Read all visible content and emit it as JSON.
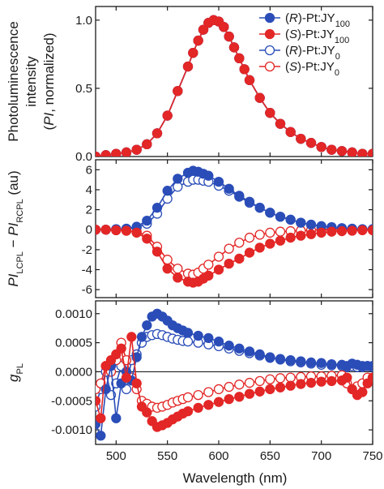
{
  "colors": {
    "r_series": "#2a4db8",
    "s_series": "#e32626",
    "axis": "#1a1a1a",
    "zero_line": "#000000"
  },
  "legend": [
    {
      "prefix": "(",
      "chiral": "R",
      "mid": ")-Pt:JY",
      "sub": "100",
      "marker": "filled",
      "color_key": "r_series"
    },
    {
      "prefix": "(",
      "chiral": "S",
      "mid": ")-Pt:JY",
      "sub": "100",
      "marker": "filled",
      "color_key": "s_series"
    },
    {
      "prefix": "(",
      "chiral": "R",
      "mid": ")-Pt:JY",
      "sub": "0",
      "marker": "open",
      "color_key": "r_series"
    },
    {
      "prefix": "(",
      "chiral": "S",
      "mid": ")-Pt:JY",
      "sub": "0",
      "marker": "open",
      "color_key": "s_series"
    }
  ],
  "chart_data": [
    {
      "type": "line",
      "panel": "top",
      "ylabel_lines": [
        "Photoluminescence",
        "intensity",
        "(PI, normalized)"
      ],
      "ylim": [
        0,
        1.1
      ],
      "yticks": [
        0.0,
        0.5,
        1.0
      ],
      "ytick_labels": [
        "0.0",
        "0.5",
        "1.0"
      ],
      "x": [
        480,
        490,
        500,
        510,
        520,
        530,
        540,
        550,
        560,
        570,
        575,
        580,
        585,
        590,
        595,
        600,
        605,
        610,
        615,
        620,
        625,
        630,
        640,
        650,
        660,
        670,
        680,
        690,
        700,
        710,
        720,
        730,
        740,
        750
      ],
      "series": [
        {
          "name": "(R)-Pt:JY100",
          "marker": "filled",
          "color_key": "r_series",
          "values": [
            0.0,
            0.01,
            0.02,
            0.03,
            0.05,
            0.09,
            0.17,
            0.3,
            0.48,
            0.66,
            0.76,
            0.85,
            0.93,
            0.98,
            1.0,
            0.99,
            0.95,
            0.88,
            0.8,
            0.72,
            0.64,
            0.56,
            0.43,
            0.32,
            0.24,
            0.18,
            0.13,
            0.1,
            0.07,
            0.05,
            0.04,
            0.03,
            0.02,
            0.02
          ]
        },
        {
          "name": "(S)-Pt:JY100",
          "marker": "filled",
          "color_key": "s_series",
          "values": [
            0.0,
            0.01,
            0.02,
            0.03,
            0.05,
            0.09,
            0.17,
            0.3,
            0.48,
            0.66,
            0.76,
            0.85,
            0.93,
            0.98,
            1.0,
            0.99,
            0.95,
            0.88,
            0.8,
            0.72,
            0.64,
            0.56,
            0.43,
            0.32,
            0.24,
            0.18,
            0.13,
            0.1,
            0.07,
            0.05,
            0.04,
            0.03,
            0.02,
            0.02
          ]
        },
        {
          "name": "(R)-Pt:JY0",
          "marker": "open",
          "color_key": "r_series",
          "values": [
            0.0,
            0.01,
            0.02,
            0.03,
            0.05,
            0.09,
            0.17,
            0.3,
            0.48,
            0.66,
            0.76,
            0.85,
            0.93,
            0.98,
            1.0,
            0.99,
            0.95,
            0.88,
            0.8,
            0.72,
            0.64,
            0.56,
            0.43,
            0.32,
            0.24,
            0.18,
            0.13,
            0.1,
            0.07,
            0.05,
            0.04,
            0.03,
            0.02,
            0.02
          ]
        },
        {
          "name": "(S)-Pt:JY0",
          "marker": "open",
          "color_key": "s_series",
          "values": [
            0.0,
            0.01,
            0.02,
            0.03,
            0.05,
            0.09,
            0.17,
            0.3,
            0.48,
            0.66,
            0.76,
            0.85,
            0.93,
            0.98,
            1.0,
            0.99,
            0.95,
            0.88,
            0.8,
            0.72,
            0.64,
            0.56,
            0.43,
            0.32,
            0.24,
            0.18,
            0.13,
            0.1,
            0.07,
            0.05,
            0.04,
            0.03,
            0.02,
            0.02
          ]
        }
      ]
    },
    {
      "type": "line",
      "panel": "middle",
      "ylabel": "PI_LCPL − PI_RCPL (au)",
      "ylim": [
        -6.8,
        7.0
      ],
      "yticks": [
        -6,
        -4,
        -2,
        0,
        2,
        4,
        6
      ],
      "ytick_labels": [
        "-6",
        "-4",
        "-2",
        "0",
        "2",
        "4",
        "6"
      ],
      "x": [
        480,
        490,
        500,
        510,
        520,
        530,
        540,
        550,
        560,
        570,
        575,
        580,
        585,
        590,
        600,
        610,
        620,
        630,
        640,
        650,
        660,
        670,
        680,
        690,
        700,
        710,
        720,
        730,
        740,
        750
      ],
      "series": [
        {
          "name": "(R)-Pt:JY100",
          "marker": "filled",
          "color_key": "r_series",
          "values": [
            0.0,
            0.0,
            0.05,
            0.1,
            0.3,
            0.9,
            2.2,
            3.9,
            5.1,
            5.7,
            5.9,
            5.8,
            5.6,
            5.4,
            4.8,
            4.1,
            3.4,
            2.8,
            2.2,
            1.7,
            1.3,
            1.0,
            0.7,
            0.5,
            0.35,
            0.25,
            0.15,
            0.1,
            0.05,
            0.05
          ]
        },
        {
          "name": "(S)-Pt:JY100",
          "marker": "filled",
          "color_key": "s_series",
          "values": [
            0.0,
            0.0,
            -0.05,
            -0.1,
            -0.3,
            -0.9,
            -2.2,
            -3.9,
            -4.8,
            -5.2,
            -5.3,
            -5.2,
            -4.9,
            -4.6,
            -4.0,
            -3.4,
            -2.9,
            -2.3,
            -1.8,
            -1.4,
            -1.1,
            -0.8,
            -0.6,
            -0.45,
            -0.3,
            -0.2,
            -0.15,
            -0.1,
            -0.05,
            -0.05
          ]
        },
        {
          "name": "(R)-Pt:JY0",
          "marker": "open",
          "color_key": "r_series",
          "values": [
            0.0,
            0.0,
            0.05,
            0.1,
            0.2,
            0.6,
            1.6,
            3.1,
            4.3,
            4.8,
            5.0,
            5.0,
            4.9,
            4.8,
            4.4,
            3.9,
            3.3,
            2.7,
            2.2,
            1.7,
            1.3,
            1.0,
            0.7,
            0.5,
            0.35,
            0.25,
            0.15,
            0.1,
            0.05,
            0.05
          ]
        },
        {
          "name": "(S)-Pt:JY0",
          "marker": "open",
          "color_key": "s_series",
          "values": [
            0.0,
            0.0,
            -0.05,
            -0.1,
            -0.2,
            -0.6,
            -1.7,
            -3.0,
            -3.9,
            -4.4,
            -4.5,
            -4.3,
            -3.9,
            -3.5,
            -2.7,
            -1.9,
            -1.3,
            -0.8,
            -0.5,
            -0.3,
            -0.2,
            -0.15,
            -0.1,
            -0.05,
            0.0,
            0.0,
            0.0,
            0.0,
            0.0,
            0.0
          ]
        }
      ]
    },
    {
      "type": "line",
      "panel": "bottom",
      "ylabel": "g_PL",
      "xlabel": "Wavelength (nm)",
      "xlim": [
        480,
        750
      ],
      "xticks": [
        500,
        550,
        600,
        650,
        700,
        750
      ],
      "xtick_labels": [
        "500",
        "550",
        "600",
        "650",
        "700",
        "750"
      ],
      "ylim": [
        -0.00125,
        0.00122
      ],
      "yticks": [
        -0.001,
        -0.0005,
        0.0,
        0.0005,
        0.001
      ],
      "ytick_labels": [
        "-0.0010",
        "-0.0005",
        "0.0000",
        "0.0005",
        "0.0010"
      ],
      "x": [
        480,
        485,
        490,
        495,
        500,
        505,
        510,
        515,
        520,
        525,
        530,
        535,
        540,
        545,
        550,
        555,
        560,
        565,
        570,
        580,
        590,
        600,
        610,
        620,
        630,
        640,
        650,
        660,
        670,
        680,
        690,
        700,
        710,
        720,
        725,
        730,
        735,
        740,
        745,
        750
      ],
      "series": [
        {
          "name": "(R)-Pt:JY100",
          "marker": "filled",
          "color_key": "r_series",
          "values": [
            -0.0009,
            -0.0011,
            -0.0003,
            0.0001,
            -0.0008,
            -0.0002,
            0.0,
            -0.00015,
            0.00025,
            0.0006,
            0.0008,
            0.00095,
            0.001,
            0.00095,
            0.00088,
            0.0008,
            0.00075,
            0.00071,
            0.00067,
            0.00062,
            0.00058,
            0.00052,
            0.00045,
            0.0004,
            0.00035,
            0.0003,
            0.00025,
            0.00022,
            0.0002,
            0.00018,
            0.00016,
            0.00015,
            0.00013,
            0.00012,
            0.0001,
            0.00014,
            0.00012,
            0.0001,
            0.0001,
            0.0001
          ]
        },
        {
          "name": "(S)-Pt:JY100",
          "marker": "filled",
          "color_key": "s_series",
          "values": [
            -0.0005,
            -0.0008,
            0.0001,
            0.0002,
            0.0003,
            0.0004,
            -0.0001,
            0.0006,
            -0.0002,
            -0.0006,
            -0.0007,
            -0.00085,
            -0.00095,
            -0.00092,
            -0.00088,
            -0.00082,
            -0.00077,
            -0.00072,
            -0.00068,
            -0.00062,
            -0.00057,
            -0.00052,
            -0.00047,
            -0.00043,
            -0.00038,
            -0.00034,
            -0.0003,
            -0.00027,
            -0.00024,
            -0.00021,
            -0.00019,
            -0.00017,
            -0.00016,
            -0.00015,
            -0.0001,
            -0.0003,
            -0.0004,
            -0.00035,
            -0.0002,
            -0.0001
          ]
        },
        {
          "name": "(R)-Pt:JY0",
          "marker": "open",
          "color_key": "r_series",
          "values": [
            -0.0006,
            -0.0003,
            0.0,
            -0.0004,
            -0.0002,
            0.0001,
            -0.0003,
            0.0002,
            0.0003,
            0.0005,
            0.0006,
            0.00063,
            0.00065,
            0.00063,
            0.0006,
            0.00057,
            0.00055,
            0.00053,
            0.00052,
            0.0005,
            0.00047,
            0.00044,
            0.0004,
            0.00036,
            0.00032,
            0.00028,
            0.00024,
            0.00021,
            0.00018,
            0.00016,
            0.00014,
            0.00012,
            0.00011,
            0.0001,
            8e-05,
            0.0001,
            8e-05,
            8e-05,
            0.0001,
            8e-05
          ]
        },
        {
          "name": "(S)-Pt:JY0",
          "marker": "open",
          "color_key": "s_series",
          "values": [
            -0.0003,
            -0.0002,
            0.0001,
            0.0,
            0.0002,
            0.0005,
            0.0002,
            -0.0001,
            -0.0003,
            -0.0005,
            -0.00055,
            -0.0006,
            -0.00062,
            -0.0006,
            -0.00057,
            -0.00053,
            -0.0005,
            -0.00047,
            -0.00044,
            -0.0004,
            -0.00035,
            -0.0003,
            -0.00026,
            -0.00022,
            -0.00019,
            -0.00016,
            -0.00013,
            -0.00011,
            -0.0001,
            -9e-05,
            -8e-05,
            -8e-05,
            -7e-05,
            -6e-05,
            -0.0002,
            -0.0003,
            -0.00025,
            -0.0002,
            -0.0001,
            -0.0001
          ]
        }
      ]
    }
  ]
}
